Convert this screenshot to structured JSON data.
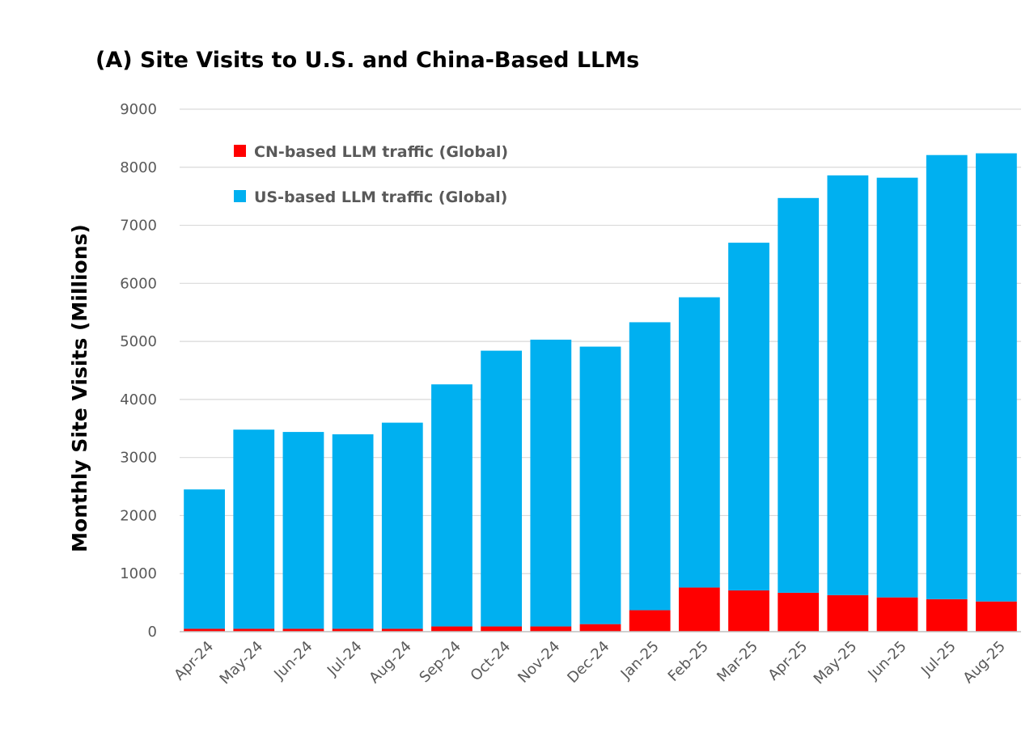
{
  "chart_data": {
    "type": "bar",
    "stacked": true,
    "title": "(A) Site Visits to U.S. and China-Based LLMs",
    "xlabel": "",
    "ylabel": "Monthly Site Visits (Millions)",
    "ylim": [
      0,
      9000
    ],
    "yticks": [
      0,
      1000,
      2000,
      3000,
      4000,
      5000,
      6000,
      7000,
      8000,
      9000
    ],
    "grid": true,
    "legend_position": "top-left",
    "categories": [
      "Apr-24",
      "May-24",
      "Jun-24",
      "Jul-24",
      "Aug-24",
      "Sep-24",
      "Oct-24",
      "Nov-24",
      "Dec-24",
      "Jan-25",
      "Feb-25",
      "Mar-25",
      "Apr-25",
      "May-25",
      "Jun-25",
      "Jul-25",
      "Aug-25"
    ],
    "series": [
      {
        "name": "CN-based LLM traffic (Global)",
        "color": "#ff0000",
        "values": [
          50,
          50,
          50,
          50,
          50,
          90,
          90,
          90,
          130,
          370,
          760,
          710,
          670,
          630,
          590,
          560,
          520
        ]
      },
      {
        "name": "US-based LLM traffic (Global)",
        "color": "#00b0f0",
        "values": [
          2400,
          3430,
          3390,
          3350,
          3550,
          4170,
          4750,
          4940,
          4780,
          4960,
          5000,
          5990,
          6800,
          7230,
          7230,
          7650,
          7720
        ]
      }
    ]
  }
}
